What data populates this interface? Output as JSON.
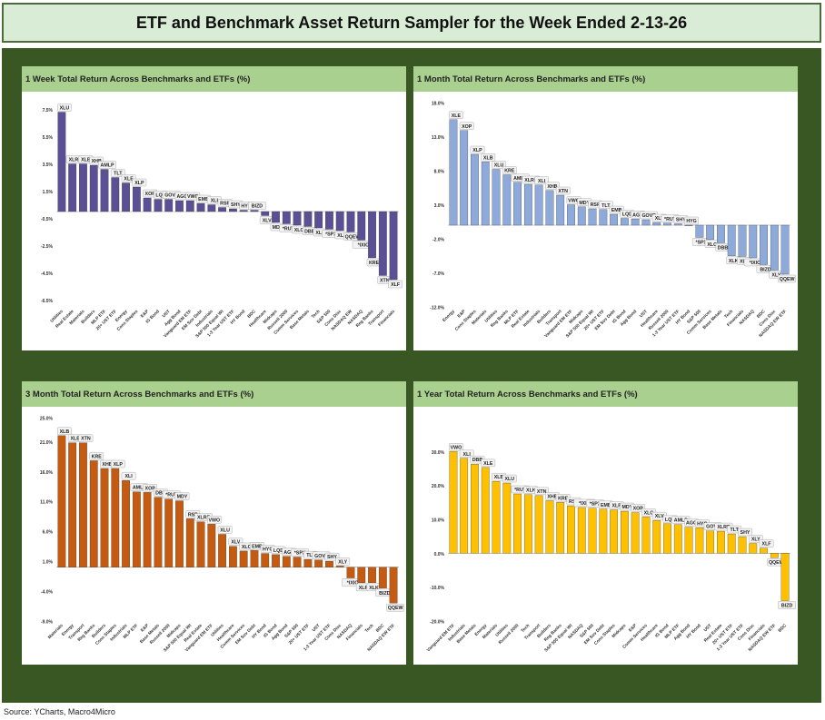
{
  "page": {
    "title": "ETF and Benchmark Asset Return Sampler for the Week Ended 2-13-26",
    "source": "Source: YCharts, Macro4Micro"
  },
  "chart_data": [
    {
      "type": "bar",
      "title": "1 Week Total Return Across Benchmarks and ETFs (%)",
      "color": "#5b4f95",
      "ylim": [
        -7.0,
        8.0
      ],
      "yticks": [
        -6.5,
        -4.5,
        -2.5,
        -0.5,
        1.5,
        3.5,
        5.5,
        7.5
      ],
      "ytick_labels": [
        "-6.5%",
        "-4.5%",
        "-2.5%",
        "-0.5%",
        "1.5%",
        "3.5%",
        "5.5%",
        "7.5%"
      ],
      "bars": [
        {
          "label": "XLU",
          "value": 7.3,
          "category": "Utilities"
        },
        {
          "label": "XLRE",
          "value": 3.5,
          "category": "Real Estate"
        },
        {
          "label": "XLB",
          "value": 3.5,
          "category": "Materials"
        },
        {
          "label": "XHB",
          "value": 3.4,
          "category": "Builders"
        },
        {
          "label": "AMLP",
          "value": 3.1,
          "category": "MLP ETF"
        },
        {
          "label": "TLT",
          "value": 2.5,
          "category": "20+ UST ETF"
        },
        {
          "label": "XLE",
          "value": 2.1,
          "category": "Energy"
        },
        {
          "label": "XLP",
          "value": 1.8,
          "category": "Cons Staples"
        },
        {
          "label": "XOP",
          "value": 1.0,
          "category": "E&P"
        },
        {
          "label": "LQD",
          "value": 0.9,
          "category": "IG Bond"
        },
        {
          "label": "GOVT",
          "value": 0.9,
          "category": "UST"
        },
        {
          "label": "AGG",
          "value": 0.8,
          "category": "Agg Bond"
        },
        {
          "label": "VWO",
          "value": 0.8,
          "category": "Vanguard EM ETF"
        },
        {
          "label": "EMB",
          "value": 0.6,
          "category": "EM Sov Debt"
        },
        {
          "label": "XLI",
          "value": 0.5,
          "category": "Industrials"
        },
        {
          "label": "RSP",
          "value": 0.3,
          "category": "S&P 500 Equal Wt"
        },
        {
          "label": "SHY",
          "value": 0.2,
          "category": "1-3 Year UST ETF"
        },
        {
          "label": "HYG",
          "value": 0.1,
          "category": "HY Bond"
        },
        {
          "label": "BIZD",
          "value": 0.1,
          "category": "BDC"
        },
        {
          "label": "XLV",
          "value": -0.3,
          "category": "Healthcare"
        },
        {
          "label": "MDY",
          "value": -0.8,
          "category": "Midcaps"
        },
        {
          "label": "*RUT",
          "value": -0.9,
          "category": "Russell 2000"
        },
        {
          "label": "XLC",
          "value": -1.0,
          "category": "Comm Services"
        },
        {
          "label": "DBB",
          "value": -1.1,
          "category": "Base Metals"
        },
        {
          "label": "XLK",
          "value": -1.2,
          "category": "Tech"
        },
        {
          "label": "*SPX",
          "value": -1.3,
          "category": "S&P 500"
        },
        {
          "label": "XLY",
          "value": -1.4,
          "category": "Cons Disc"
        },
        {
          "label": "QQEW",
          "value": -1.5,
          "category": "NASDAQ EW"
        },
        {
          "label": "*IXIC",
          "value": -2.1,
          "category": "NASDAQ"
        },
        {
          "label": "KRE",
          "value": -3.4,
          "category": "Reg Banks"
        },
        {
          "label": "XTN",
          "value": -4.7,
          "category": "Transport"
        },
        {
          "label": "XLF",
          "value": -5.0,
          "category": "Financials"
        }
      ]
    },
    {
      "type": "bar",
      "title": "1 Month Total Return Across Benchmarks and ETFs (%)",
      "color": "#8eaadb",
      "ylim": [
        -12.0,
        18.0
      ],
      "yticks": [
        -12.0,
        -7.0,
        -2.0,
        3.0,
        8.0,
        13.0,
        18.0
      ],
      "ytick_labels": [
        "-12.0%",
        "-7.0%",
        "-2.0%",
        "3.0%",
        "8.0%",
        "13.0%",
        "18.0%"
      ],
      "bars": [
        {
          "label": "XLE",
          "value": 15.5,
          "category": "Energy"
        },
        {
          "label": "XOP",
          "value": 13.9,
          "category": "E&P"
        },
        {
          "label": "XLP",
          "value": 10.4,
          "category": "Cons Staples"
        },
        {
          "label": "XLB",
          "value": 9.3,
          "category": "Materials"
        },
        {
          "label": "XLU",
          "value": 8.2,
          "category": "Utilities"
        },
        {
          "label": "KRE",
          "value": 7.4,
          "category": "Reg Banks"
        },
        {
          "label": "AMLP",
          "value": 6.3,
          "category": "MLP ETF"
        },
        {
          "label": "XLRE",
          "value": 6.0,
          "category": "Real Estate"
        },
        {
          "label": "XLI",
          "value": 5.9,
          "category": "Industrials"
        },
        {
          "label": "XHB",
          "value": 5.1,
          "category": "Builders"
        },
        {
          "label": "XTN",
          "value": 4.4,
          "category": "Transport"
        },
        {
          "label": "VWO",
          "value": 3.0,
          "category": "Vanguard EM ETF"
        },
        {
          "label": "MDY",
          "value": 2.7,
          "category": "Midcaps"
        },
        {
          "label": "RSP",
          "value": 2.4,
          "category": "S&P 500 Equal Wt"
        },
        {
          "label": "TLT",
          "value": 2.3,
          "category": "20+ UST ETF"
        },
        {
          "label": "EMB",
          "value": 1.6,
          "category": "EM Sov Debt"
        },
        {
          "label": "LQD",
          "value": 1.0,
          "category": "IG Bond"
        },
        {
          "label": "AGG",
          "value": 0.9,
          "category": "Agg Bond"
        },
        {
          "label": "GOVT",
          "value": 0.8,
          "category": "UST"
        },
        {
          "label": "XLV",
          "value": 0.4,
          "category": "Healthcare"
        },
        {
          "label": "*RUT",
          "value": 0.3,
          "category": "Russell 2000"
        },
        {
          "label": "SHY",
          "value": 0.2,
          "category": "1-3 Year UST ETF"
        },
        {
          "label": "HYG",
          "value": 0.0,
          "category": "HY Bond"
        },
        {
          "label": "*SPX",
          "value": -1.8,
          "category": "S&P 500"
        },
        {
          "label": "XLC",
          "value": -2.1,
          "category": "Comm Services"
        },
        {
          "label": "DBB",
          "value": -2.6,
          "category": "Base Metals"
        },
        {
          "label": "XLK",
          "value": -4.5,
          "category": "Tech"
        },
        {
          "label": "XLF",
          "value": -4.6,
          "category": "Financials"
        },
        {
          "label": "*IXIC",
          "value": -4.8,
          "category": "NASDAQ"
        },
        {
          "label": "BIZD",
          "value": -5.8,
          "category": "BDC"
        },
        {
          "label": "XLY",
          "value": -6.6,
          "category": "Cons Disc"
        },
        {
          "label": "QQEW",
          "value": -7.2,
          "category": "NASDAQ EW ETF"
        }
      ]
    },
    {
      "type": "bar",
      "title": "3 Month Total Return Across Benchmarks and ETFs (%)",
      "color": "#c55a11",
      "ylim": [
        -9.0,
        25.0
      ],
      "yticks": [
        -9.0,
        -4.0,
        1.0,
        6.0,
        11.0,
        16.0,
        21.0,
        25.0
      ],
      "ytick_labels": [
        "-9.0%",
        "-4.0%",
        "1.0%",
        "6.0%",
        "11.0%",
        "16.0%",
        "21.0%",
        "25.0%"
      ],
      "bars": [
        {
          "label": "XLB",
          "value": 22.0,
          "category": "Materials"
        },
        {
          "label": "XLE",
          "value": 20.8,
          "category": "Energy"
        },
        {
          "label": "XTN",
          "value": 20.8,
          "category": "Transport"
        },
        {
          "label": "KRE",
          "value": 17.8,
          "category": "Reg Banks"
        },
        {
          "label": "XHB",
          "value": 16.5,
          "category": "Builders"
        },
        {
          "label": "XLP",
          "value": 16.5,
          "category": "Cons Staples"
        },
        {
          "label": "XLI",
          "value": 14.5,
          "category": "Industrials"
        },
        {
          "label": "AMLP",
          "value": 12.6,
          "category": "MLP ETF"
        },
        {
          "label": "XOP",
          "value": 12.5,
          "category": "E&P"
        },
        {
          "label": "DBB",
          "value": 11.7,
          "category": "Base Metals"
        },
        {
          "label": "*RUT",
          "value": 11.4,
          "category": "Russell 2000"
        },
        {
          "label": "MDY",
          "value": 11.1,
          "category": "Midcaps"
        },
        {
          "label": "RSP",
          "value": 8.1,
          "category": "S&P 500 Equal Wt"
        },
        {
          "label": "XLRE",
          "value": 7.6,
          "category": "Real Estate"
        },
        {
          "label": "VWO",
          "value": 7.2,
          "category": "Vanguard EM ETF"
        },
        {
          "label": "XLU",
          "value": 5.5,
          "category": "Utilities"
        },
        {
          "label": "XLV",
          "value": 3.5,
          "category": "Healthcare"
        },
        {
          "label": "XLC",
          "value": 2.7,
          "category": "Comm Services"
        },
        {
          "label": "EMB",
          "value": 2.8,
          "category": "EM Sov Debt"
        },
        {
          "label": "HYG",
          "value": 2.3,
          "category": "HY Bond"
        },
        {
          "label": "LQD",
          "value": 2.1,
          "category": "IG Bond"
        },
        {
          "label": "AGG",
          "value": 1.8,
          "category": "Agg Bond"
        },
        {
          "label": "*SPX",
          "value": 1.7,
          "category": "S&P 500"
        },
        {
          "label": "TLT",
          "value": 1.3,
          "category": "20+ UST ETF"
        },
        {
          "label": "GOVT",
          "value": 1.2,
          "category": "UST"
        },
        {
          "label": "SHY",
          "value": 1.0,
          "category": "1-3 Year UST ETF"
        },
        {
          "label": "XLY",
          "value": 0.2,
          "category": "Cons Disc"
        },
        {
          "label": "*IXIC",
          "value": -1.8,
          "category": "NASDAQ"
        },
        {
          "label": "XLF",
          "value": -2.6,
          "category": "Financials"
        },
        {
          "label": "XLK",
          "value": -2.6,
          "category": "Tech"
        },
        {
          "label": "BIZD",
          "value": -3.5,
          "category": "BDC"
        },
        {
          "label": "QQEW",
          "value": -6.0,
          "category": "NASDAQ EW ETF"
        }
      ]
    },
    {
      "type": "bar",
      "title": "1 Year Total Return Across Benchmarks and ETFs (%)",
      "color": "#ffc000",
      "ylim": [
        -20.0,
        40.0
      ],
      "yticks": [
        -20.0,
        -10.0,
        0.0,
        10.0,
        20.0,
        30.0
      ],
      "ytick_labels": [
        "-20.0%",
        "-10.0%",
        "0.0%",
        "10.0%",
        "20.0%",
        "30.0%"
      ],
      "bars": [
        {
          "label": "VWO",
          "value": 30.0,
          "category": "Vanguard EM ETF"
        },
        {
          "label": "XLI",
          "value": 28.0,
          "category": "Industrials"
        },
        {
          "label": "DBB",
          "value": 26.3,
          "category": "Base Metals"
        },
        {
          "label": "XLE",
          "value": 25.3,
          "category": "Energy"
        },
        {
          "label": "XLB",
          "value": 21.2,
          "category": "Materials"
        },
        {
          "label": "XLU",
          "value": 20.7,
          "category": "Utilities"
        },
        {
          "label": "*RUT",
          "value": 17.5,
          "category": "Russell 2000"
        },
        {
          "label": "XLK",
          "value": 17.3,
          "category": "Tech"
        },
        {
          "label": "XTN",
          "value": 17.0,
          "category": "Transport"
        },
        {
          "label": "XHB",
          "value": 15.5,
          "category": "Builders"
        },
        {
          "label": "KRE",
          "value": 15.0,
          "category": "Reg Banks"
        },
        {
          "label": "RSP",
          "value": 14.0,
          "category": "S&P 500 Equal Wt"
        },
        {
          "label": "*IXIC",
          "value": 13.5,
          "category": "NASDAQ"
        },
        {
          "label": "*SPX",
          "value": 13.3,
          "category": "S&P 500"
        },
        {
          "label": "EMB",
          "value": 13.0,
          "category": "EM Sov Debt"
        },
        {
          "label": "XLP",
          "value": 12.8,
          "category": "Cons Staples"
        },
        {
          "label": "MDY",
          "value": 12.4,
          "category": "Midcaps"
        },
        {
          "label": "XOP",
          "value": 12.0,
          "category": "E&P"
        },
        {
          "label": "XLC",
          "value": 10.7,
          "category": "Comm Services"
        },
        {
          "label": "XLV",
          "value": 9.7,
          "category": "Healthcare"
        },
        {
          "label": "LQD",
          "value": 8.7,
          "category": "IG Bond"
        },
        {
          "label": "AMLP",
          "value": 8.5,
          "category": "MLP ETF"
        },
        {
          "label": "AGG",
          "value": 7.7,
          "category": "Agg Bond"
        },
        {
          "label": "HYG",
          "value": 7.5,
          "category": "HY Bond"
        },
        {
          "label": "GOVT",
          "value": 6.6,
          "category": "UST"
        },
        {
          "label": "XLRE",
          "value": 6.5,
          "category": "Real Estate"
        },
        {
          "label": "TLT",
          "value": 5.7,
          "category": "20+ UST ETF"
        },
        {
          "label": "SHY",
          "value": 4.9,
          "category": "1-3 Year UST ETF"
        },
        {
          "label": "XLY",
          "value": 2.9,
          "category": "Cons Disc"
        },
        {
          "label": "XLF",
          "value": 1.5,
          "category": "Financials"
        },
        {
          "label": "QQEW",
          "value": -1.3,
          "category": "NASDAQ EW ETF"
        },
        {
          "label": "BIZD",
          "value": -14.0,
          "category": "BDC"
        }
      ]
    }
  ]
}
